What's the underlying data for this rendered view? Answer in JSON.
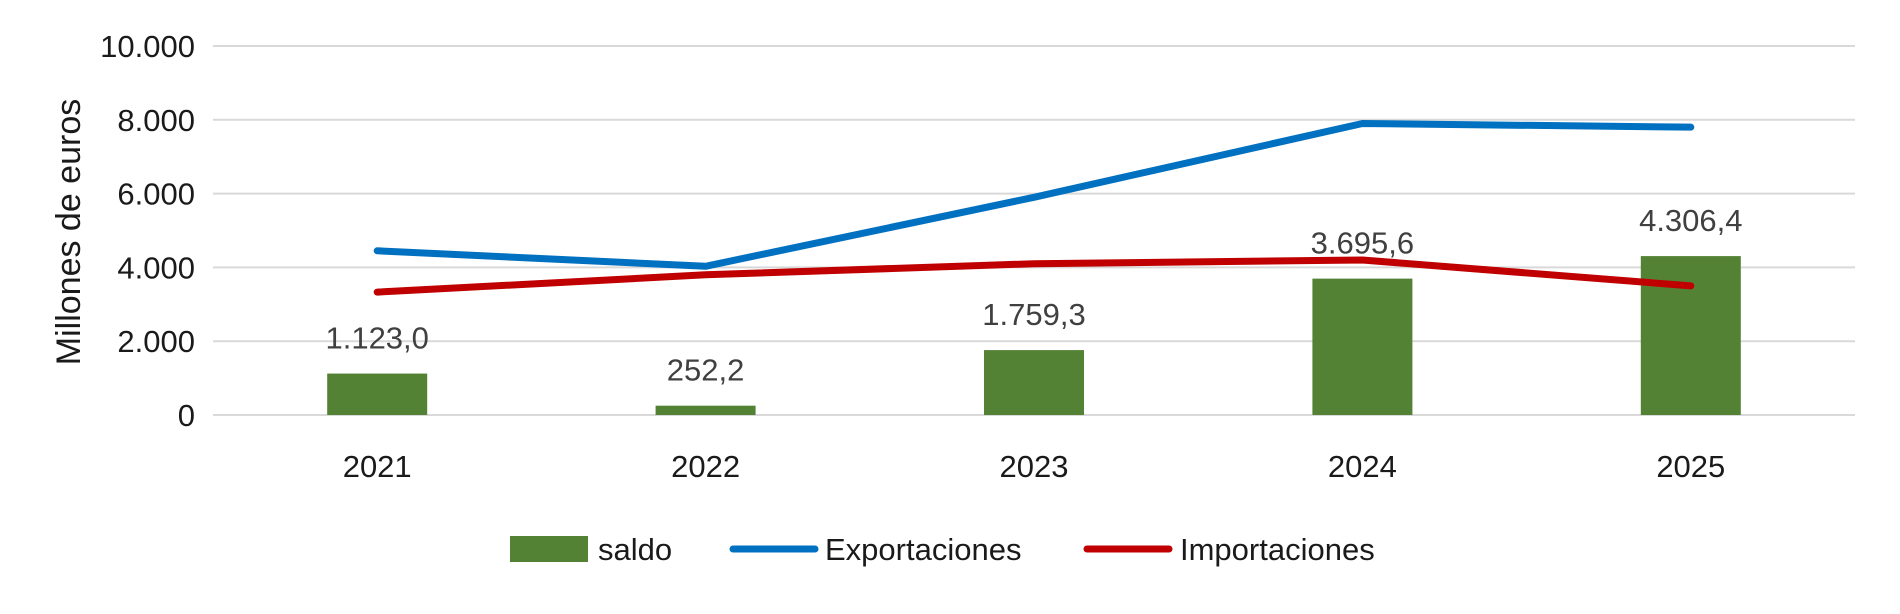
{
  "chart_data": {
    "type": "bar+line",
    "title": "",
    "xlabel": "",
    "ylabel": "Millones de euros",
    "ylim": [
      0,
      10000
    ],
    "yticks": [
      0,
      2000,
      4000,
      6000,
      8000,
      10000
    ],
    "ytick_labels": [
      "0",
      "2.000",
      "4.000",
      "6.000",
      "8.000",
      "10.000"
    ],
    "categories": [
      "2021",
      "2022",
      "2023",
      "2024",
      "2025"
    ],
    "grid": true,
    "legend_position": "bottom",
    "series": [
      {
        "name": "saldo",
        "kind": "bar",
        "color": "#548235",
        "values": [
          1123.0,
          252.2,
          1759.3,
          3695.6,
          4306.4
        ],
        "labels": [
          "1.123,0",
          "252,2",
          "1.759,3",
          "3.695,6",
          "4.306,4"
        ]
      },
      {
        "name": "Exportaciones",
        "kind": "line",
        "color": "#0070C0",
        "values": [
          4450,
          4030,
          5900,
          7900,
          7800
        ]
      },
      {
        "name": "Importaciones",
        "kind": "line",
        "color": "#C00000",
        "values": [
          3330,
          3800,
          4100,
          4200,
          3500
        ]
      }
    ]
  }
}
